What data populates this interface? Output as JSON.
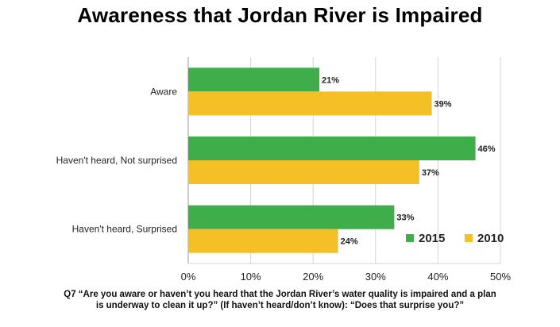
{
  "chart_data": {
    "type": "bar",
    "orientation": "horizontal",
    "title": "Awareness that Jordan River is Impaired",
    "categories": [
      "Aware",
      "Haven't heard, Not surprised",
      "Haven't heard, Surprised"
    ],
    "series": [
      {
        "name": "2015",
        "values": [
          21,
          46,
          33
        ],
        "color": "#3fad4a"
      },
      {
        "name": "2010",
        "values": [
          39,
          37,
          24
        ],
        "color": "#f5c026"
      }
    ],
    "value_suffix": "%",
    "xlim": [
      0,
      50
    ],
    "xticks": [
      0,
      10,
      20,
      30,
      40,
      50
    ],
    "xtick_labels": [
      "0%",
      "10%",
      "20%",
      "30%",
      "40%",
      "50%"
    ],
    "grid": "vertical",
    "legend_position": "bottom-right",
    "footnote": [
      "Q7 “Are you aware or haven’t you heard that the Jordan River’s water quality is impaired and a plan",
      "is underway to clean it up?”  (If haven’t heard/don’t know): “Does that surprise you?”"
    ]
  }
}
